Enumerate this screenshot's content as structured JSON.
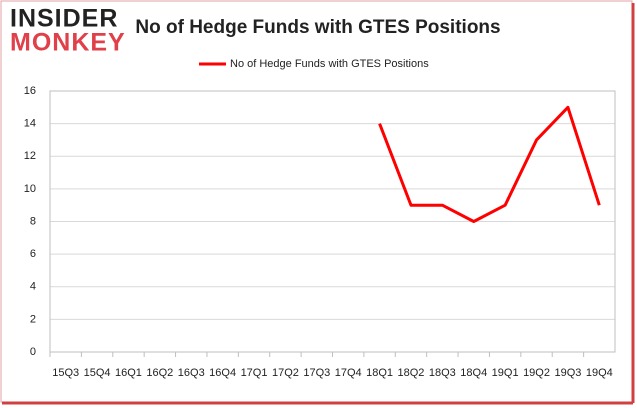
{
  "logo": {
    "line1": "INSIDER",
    "line2": "MONKEY"
  },
  "chart_data": {
    "type": "line",
    "title": "No of Hedge Funds with GTES Positions",
    "categories": [
      "15Q3",
      "15Q4",
      "16Q1",
      "16Q2",
      "16Q3",
      "16Q4",
      "17Q1",
      "17Q2",
      "17Q3",
      "17Q4",
      "18Q1",
      "18Q2",
      "18Q3",
      "18Q4",
      "19Q1",
      "19Q2",
      "19Q3",
      "19Q4"
    ],
    "series": [
      {
        "name": "No of Hedge Funds with GTES  Positions",
        "color": "#ff0000",
        "values": [
          null,
          null,
          null,
          null,
          null,
          null,
          null,
          null,
          null,
          null,
          14,
          9,
          9,
          8,
          9,
          13,
          15,
          9
        ]
      }
    ],
    "ylim": [
      0,
      16
    ],
    "yticks": [
      0,
      2,
      4,
      6,
      8,
      10,
      12,
      14,
      16
    ],
    "grid": true,
    "legend": "top"
  }
}
